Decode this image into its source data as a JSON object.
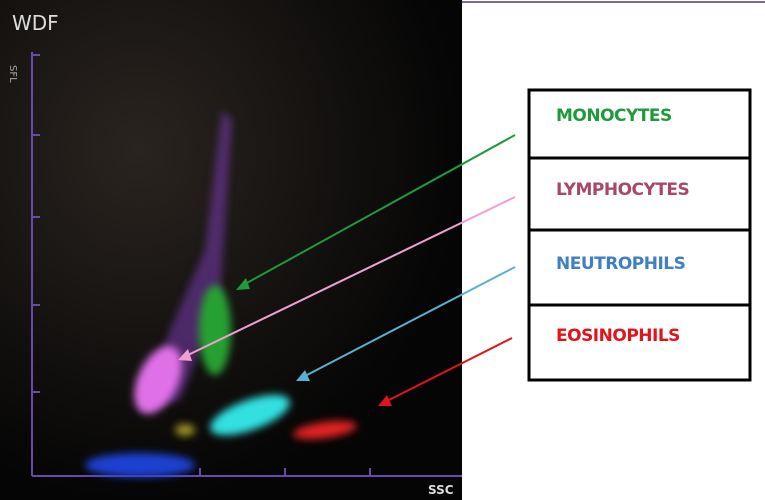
{
  "plot": {
    "title": "WDF",
    "y_axis_label": "SFL",
    "x_axis_label": "SSC"
  },
  "labels": [
    {
      "text": "MONOCYTES",
      "color": "#1f9a3a"
    },
    {
      "text": "LYMPHOCYTES",
      "color": "#a8476a"
    },
    {
      "text": "NEUTROPHILS",
      "color": "#3f7fc4"
    },
    {
      "text": "EOSINOPHILS",
      "color": "#e0141a"
    }
  ]
}
